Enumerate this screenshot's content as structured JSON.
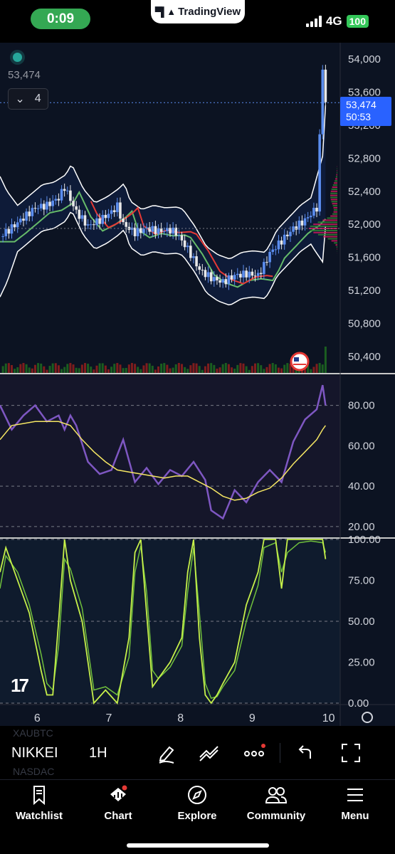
{
  "status_bar": {
    "time": "0:09",
    "app_name": "TradingView",
    "network": "4G",
    "battery": "100"
  },
  "legend": {
    "last_price": "53,474",
    "indicator_count": "4"
  },
  "price_tag": {
    "price": "53,474",
    "countdown": "50:53"
  },
  "price_axis": [
    "54,000",
    "53,600",
    "53,200",
    "52,800",
    "52,400",
    "52,000",
    "51,600",
    "51,200",
    "50,800",
    "50,400"
  ],
  "rsi_axis": [
    "80.00",
    "60.00",
    "40.00",
    "20.00"
  ],
  "stoch_axis": [
    "100.00",
    "75.00",
    "50.00",
    "25.00",
    "0.00"
  ],
  "time_axis": [
    "6",
    "7",
    "8",
    "9",
    "10"
  ],
  "watermark": "17",
  "toolbar": {
    "symbol": "NIKKEI",
    "interval": "1H",
    "ghost_above": "XAUBTC",
    "ghost_below": "NASDAC"
  },
  "tabs": [
    {
      "label": "Watchlist",
      "icon": "bookmark-icon"
    },
    {
      "label": "Chart",
      "icon": "chart-icon"
    },
    {
      "label": "Explore",
      "icon": "compass-icon"
    },
    {
      "label": "Community",
      "icon": "people-icon"
    },
    {
      "label": "Menu",
      "icon": "menu-icon"
    }
  ],
  "colors": {
    "background": "#0c1322",
    "up": "#5b8def",
    "down": "#e8e8e8",
    "rsi": "#7e57c2",
    "rsi_signal": "#f5e663",
    "stoch_k": "#c6f04a",
    "stoch_d": "#6fbf3c",
    "ma_red": "#e53935",
    "ma_green": "#66bb6a",
    "accent": "#2962ff"
  },
  "chart_data": [
    {
      "type": "line",
      "title": "",
      "y_range": [
        50200,
        54200
      ],
      "x_ticks": [
        "6",
        "7",
        "8",
        "9",
        "10"
      ],
      "close_series": [
        [
          0,
          51850
        ],
        [
          2,
          51960
        ],
        [
          4,
          52080
        ],
        [
          6,
          52200
        ],
        [
          8,
          52230
        ],
        [
          10,
          52320
        ],
        [
          11,
          52450
        ],
        [
          12,
          52300
        ],
        [
          13,
          52150
        ],
        [
          15,
          51980
        ],
        [
          17,
          52050
        ],
        [
          19,
          52150
        ],
        [
          20,
          52220
        ],
        [
          21,
          52000
        ],
        [
          23,
          51900
        ],
        [
          25,
          51950
        ],
        [
          27,
          51920
        ],
        [
          29,
          51930
        ],
        [
          30,
          51900
        ],
        [
          32,
          51700
        ],
        [
          34,
          51450
        ],
        [
          36,
          51350
        ],
        [
          38,
          51300
        ],
        [
          40,
          51380
        ],
        [
          42,
          51400
        ],
        [
          44,
          51380
        ],
        [
          45,
          51500
        ],
        [
          46,
          51650
        ],
        [
          48,
          51800
        ],
        [
          50,
          51950
        ],
        [
          52,
          52050
        ],
        [
          54,
          52200
        ],
        [
          55,
          53900
        ],
        [
          55.5,
          53474
        ]
      ]
    },
    {
      "type": "line",
      "title": "",
      "y_range": [
        15,
        95
      ],
      "series": [
        {
          "values": [
            [
              0,
              80
            ],
            [
              2,
              68
            ],
            [
              4,
              75
            ],
            [
              6,
              80
            ],
            [
              8,
              72
            ],
            [
              10,
              75
            ],
            [
              11,
              68
            ],
            [
              12,
              75
            ],
            [
              13,
              70
            ],
            [
              15,
              52
            ],
            [
              17,
              46
            ],
            [
              19,
              48
            ],
            [
              21,
              63
            ],
            [
              23,
              42
            ],
            [
              25,
              49
            ],
            [
              27,
              41
            ],
            [
              29,
              48
            ],
            [
              31,
              45
            ],
            [
              33,
              52
            ],
            [
              35,
              43
            ],
            [
              36,
              28
            ],
            [
              38,
              24
            ],
            [
              40,
              38
            ],
            [
              42,
              32
            ],
            [
              44,
              42
            ],
            [
              46,
              48
            ],
            [
              48,
              42
            ],
            [
              50,
              62
            ],
            [
              52,
              73
            ],
            [
              54,
              78
            ],
            [
              55,
              90
            ],
            [
              55.5,
              80
            ]
          ]
        },
        {
          "values": [
            [
              0,
              63
            ],
            [
              2,
              70
            ],
            [
              4,
              71
            ],
            [
              6,
              72
            ],
            [
              8,
              72
            ],
            [
              10,
              72
            ],
            [
              12,
              70
            ],
            [
              14,
              63
            ],
            [
              16,
              57
            ],
            [
              18,
              52
            ],
            [
              20,
              48
            ],
            [
              22,
              47
            ],
            [
              24,
              46
            ],
            [
              26,
              45
            ],
            [
              28,
              44
            ],
            [
              30,
              45
            ],
            [
              32,
              45
            ],
            [
              34,
              42
            ],
            [
              36,
              39
            ],
            [
              38,
              35
            ],
            [
              40,
              33
            ],
            [
              42,
              34
            ],
            [
              44,
              37
            ],
            [
              46,
              39
            ],
            [
              48,
              44
            ],
            [
              50,
              51
            ],
            [
              52,
              57
            ],
            [
              54,
              63
            ],
            [
              55,
              68
            ],
            [
              55.5,
              70
            ]
          ]
        }
      ]
    },
    {
      "type": "line",
      "title": "",
      "y_range": [
        0,
        100
      ],
      "series": [
        {
          "values": [
            [
              0,
              80
            ],
            [
              1,
              95
            ],
            [
              3,
              75
            ],
            [
              5,
              55
            ],
            [
              7,
              20
            ],
            [
              8,
              5
            ],
            [
              9,
              5
            ],
            [
              10,
              50
            ],
            [
              11,
              100
            ],
            [
              12,
              75
            ],
            [
              14,
              50
            ],
            [
              16,
              0
            ],
            [
              18,
              8
            ],
            [
              20,
              0
            ],
            [
              22,
              40
            ],
            [
              23,
              92
            ],
            [
              24,
              100
            ],
            [
              25,
              55
            ],
            [
              26,
              10
            ],
            [
              27,
              15
            ],
            [
              29,
              25
            ],
            [
              31,
              40
            ],
            [
              32,
              80
            ],
            [
              33,
              100
            ],
            [
              34,
              40
            ],
            [
              35,
              5
            ],
            [
              36,
              0
            ],
            [
              37,
              5
            ],
            [
              38,
              12
            ],
            [
              40,
              25
            ],
            [
              42,
              60
            ],
            [
              44,
              80
            ],
            [
              45,
              100
            ],
            [
              47,
              100
            ],
            [
              48,
              70
            ],
            [
              49,
              100
            ],
            [
              51,
              100
            ],
            [
              53,
              100
            ],
            [
              55,
              100
            ],
            [
              55.5,
              88
            ]
          ]
        },
        {
          "values": [
            [
              0,
              70
            ],
            [
              1,
              90
            ],
            [
              3,
              80
            ],
            [
              5,
              60
            ],
            [
              7,
              30
            ],
            [
              8,
              12
            ],
            [
              9,
              8
            ],
            [
              10,
              35
            ],
            [
              11,
              88
            ],
            [
              12,
              82
            ],
            [
              14,
              58
            ],
            [
              16,
              8
            ],
            [
              18,
              10
            ],
            [
              20,
              5
            ],
            [
              22,
              28
            ],
            [
              23,
              80
            ],
            [
              24,
              96
            ],
            [
              25,
              68
            ],
            [
              26,
              20
            ],
            [
              27,
              15
            ],
            [
              29,
              22
            ],
            [
              31,
              35
            ],
            [
              32,
              68
            ],
            [
              33,
              95
            ],
            [
              34,
              55
            ],
            [
              35,
              12
            ],
            [
              36,
              3
            ],
            [
              37,
              4
            ],
            [
              38,
              10
            ],
            [
              40,
              20
            ],
            [
              42,
              50
            ],
            [
              44,
              72
            ],
            [
              45,
              95
            ],
            [
              47,
              98
            ],
            [
              48,
              80
            ],
            [
              49,
              92
            ],
            [
              51,
              98
            ],
            [
              53,
              99
            ],
            [
              55,
              98
            ],
            [
              55.5,
              92
            ]
          ]
        }
      ]
    }
  ]
}
